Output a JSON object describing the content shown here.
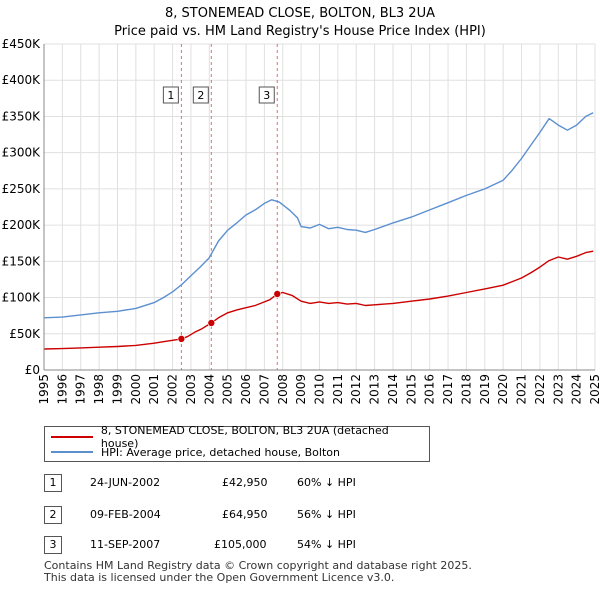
{
  "title": {
    "line1": "8, STONEMEAD CLOSE, BOLTON, BL3 2UA",
    "line2": "Price paid vs. HM Land Registry's House Price Index (HPI)"
  },
  "colors": {
    "property": "#cc0000",
    "hpi": "#5b8fd0",
    "grid": "#e0e0e0",
    "marker_line": "#e07070"
  },
  "chart_data": {
    "type": "line",
    "xlim": [
      1995,
      2025
    ],
    "ylim": [
      0,
      450000
    ],
    "y_ticks": [
      0,
      50000,
      100000,
      150000,
      200000,
      250000,
      300000,
      350000,
      400000,
      450000
    ],
    "y_tick_labels": [
      "£0",
      "£50K",
      "£100K",
      "£150K",
      "£200K",
      "£250K",
      "£300K",
      "£350K",
      "£400K",
      "£450K"
    ],
    "x_ticks": [
      1995,
      1996,
      1997,
      1998,
      1999,
      2000,
      2001,
      2002,
      2003,
      2004,
      2005,
      2006,
      2007,
      2008,
      2009,
      2010,
      2011,
      2012,
      2013,
      2014,
      2015,
      2016,
      2017,
      2018,
      2019,
      2020,
      2021,
      2022,
      2023,
      2024,
      2025
    ],
    "x_tick_labels": [
      "1995",
      "1996",
      "1997",
      "1998",
      "1999",
      "2000",
      "2001",
      "2002",
      "2003",
      "2004",
      "2005",
      "2006",
      "2007",
      "2008",
      "2009",
      "2010",
      "2011",
      "2012",
      "2013",
      "2014",
      "2015",
      "2016",
      "2017",
      "2018",
      "2019",
      "2020",
      "2021",
      "2022",
      "2023",
      "2024",
      "2025"
    ],
    "grid": true,
    "series": [
      {
        "name": "8, STONEMEAD CLOSE, BOLTON, BL3 2UA (detached house)",
        "color": "#cc0000",
        "x": [
          1995.0,
          1996.0,
          1997.0,
          1998.0,
          1999.0,
          2000.0,
          2001.0,
          2001.5,
          2002.0,
          2002.48,
          2002.8,
          2003.2,
          2003.6,
          2004.11,
          2004.5,
          2005.0,
          2005.5,
          2006.0,
          2006.5,
          2007.0,
          2007.3,
          2007.7,
          2008.0,
          2008.5,
          2009.0,
          2009.5,
          2010.0,
          2010.5,
          2011.0,
          2011.5,
          2012.0,
          2012.5,
          2013.0,
          2014.0,
          2015.0,
          2016.0,
          2017.0,
          2018.0,
          2019.0,
          2020.0,
          2020.5,
          2021.0,
          2021.5,
          2022.0,
          2022.5,
          2023.0,
          2023.5,
          2024.0,
          2024.5,
          2024.9
        ],
        "y": [
          29000,
          29500,
          30500,
          31500,
          32500,
          34000,
          37000,
          39000,
          41000,
          42950,
          46000,
          52000,
          57000,
          64950,
          72000,
          79000,
          83000,
          86000,
          89000,
          94000,
          97000,
          105000,
          107000,
          103000,
          95000,
          92000,
          94000,
          92000,
          93000,
          91000,
          92000,
          89000,
          90000,
          92000,
          95000,
          98000,
          102000,
          107000,
          112000,
          117000,
          122000,
          127000,
          134000,
          142000,
          151000,
          156000,
          153000,
          157000,
          162000,
          164000
        ]
      },
      {
        "name": "HPI: Average price, detached house, Bolton",
        "color": "#5b8fd0",
        "x": [
          1995.0,
          1996.0,
          1997.0,
          1998.0,
          1999.0,
          2000.0,
          2001.0,
          2001.5,
          2002.0,
          2002.5,
          2003.0,
          2003.5,
          2004.0,
          2004.5,
          2005.0,
          2005.5,
          2006.0,
          2006.5,
          2007.0,
          2007.4,
          2007.8,
          2008.0,
          2008.4,
          2008.8,
          2009.0,
          2009.5,
          2010.0,
          2010.5,
          2011.0,
          2011.5,
          2012.0,
          2012.5,
          2013.0,
          2014.0,
          2015.0,
          2016.0,
          2017.0,
          2018.0,
          2019.0,
          2020.0,
          2020.5,
          2021.0,
          2021.5,
          2022.0,
          2022.5,
          2023.0,
          2023.5,
          2024.0,
          2024.5,
          2024.9
        ],
        "y": [
          72000,
          73000,
          76000,
          79000,
          81000,
          85000,
          93000,
          100000,
          108000,
          118000,
          130000,
          142000,
          155000,
          178000,
          193000,
          203000,
          214000,
          221000,
          230000,
          235000,
          232000,
          228000,
          220000,
          210000,
          198000,
          196000,
          201000,
          195000,
          197000,
          194000,
          193000,
          190000,
          194000,
          203000,
          211000,
          221000,
          231000,
          241000,
          250000,
          262000,
          276000,
          292000,
          310000,
          328000,
          347000,
          338000,
          331000,
          338000,
          350000,
          355000
        ]
      }
    ],
    "sale_markers": [
      {
        "label": "1",
        "x": 2002.48,
        "y": 42950
      },
      {
        "label": "2",
        "x": 2004.11,
        "y": 64950
      },
      {
        "label": "3",
        "x": 2007.7,
        "y": 105000
      }
    ]
  },
  "legend": {
    "items": [
      "8, STONEMEAD CLOSE, BOLTON, BL3 2UA (detached house)",
      "HPI: Average price, detached house, Bolton"
    ]
  },
  "transactions": [
    {
      "num": "1",
      "date": "24-JUN-2002",
      "price": "£42,950",
      "hpi": "60% ↓ HPI"
    },
    {
      "num": "2",
      "date": "09-FEB-2004",
      "price": "£64,950",
      "hpi": "56% ↓ HPI"
    },
    {
      "num": "3",
      "date": "11-SEP-2007",
      "price": "£105,000",
      "hpi": "54% ↓ HPI"
    }
  ],
  "footer": {
    "line1": "Contains HM Land Registry data © Crown copyright and database right 2025.",
    "line2": "This data is licensed under the Open Government Licence v3.0."
  }
}
